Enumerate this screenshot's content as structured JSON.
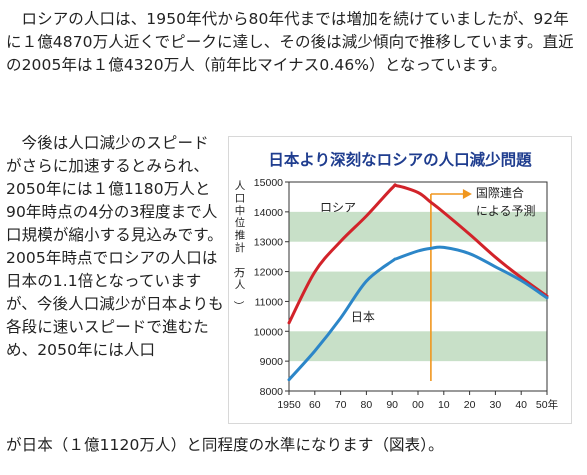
{
  "article": {
    "para1": "ロシアの人口は、1950年代から80年代までは増加を続けていましたが、92年に１億4870万人近くでピークに達し、その後は減少傾向で推移しています。直近の2005年は１億4320万人（前年比マイナス0.46%）となっています。",
    "para2_column": "今後は人口減少のスピードがさらに加速するとみられ、2050年には１億1180万人と90年時点の4分の3程度まで人口規模が縮小する見込みです。2005年時点でロシアの人口は日本の1.1倍となっていますが、今後人口減少が日本よりも各段に速いスピードで進むため、2050年には人口",
    "para2_tail": "が日本（１億1120万人）と同程度の水準になります（図表）。"
  },
  "chart_data": {
    "type": "line",
    "title": "日本より深刻なロシアの人口減少問題",
    "ylabel": "人口中位推計（万人）",
    "x": [
      1950,
      1960,
      1970,
      1980,
      1990,
      1992,
      2000,
      2005,
      2010,
      2020,
      2030,
      2040,
      2050
    ],
    "xlim": [
      1950,
      2050
    ],
    "ylim": [
      8000,
      15000
    ],
    "x_tick_values": [
      1950,
      1960,
      1970,
      1980,
      1990,
      2000,
      2010,
      2020,
      2030,
      2040,
      2050
    ],
    "x_tick_labels": [
      "1950",
      "60",
      "70",
      "80",
      "90",
      "00",
      "10",
      "20",
      "30",
      "40",
      "50年"
    ],
    "y_ticks": [
      8000,
      9000,
      10000,
      11000,
      12000,
      13000,
      14000,
      15000
    ],
    "series": [
      {
        "name": "ロシア",
        "color": "#d2232a",
        "values": [
          10280,
          11990,
          13010,
          13860,
          14800,
          14870,
          14650,
          14320,
          13980,
          13250,
          12480,
          11800,
          11180
        ]
      },
      {
        "name": "日本",
        "color": "#2c86c8",
        "values": [
          8380,
          9340,
          10440,
          11680,
          12350,
          12440,
          12690,
          12780,
          12810,
          12600,
          12160,
          11700,
          11120
        ]
      }
    ],
    "annotation": {
      "text_line1": "国際連合",
      "text_line2": "による予測",
      "x": 2005,
      "color": "#f0961e"
    },
    "band_color": "#c8e0c8"
  }
}
